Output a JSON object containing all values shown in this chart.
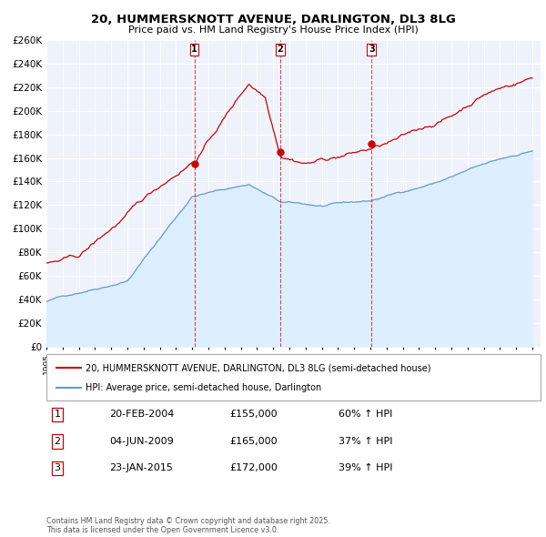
{
  "title_line1": "20, HUMMERSKNOTT AVENUE, DARLINGTON, DL3 8LG",
  "title_line2": "Price paid vs. HM Land Registry's House Price Index (HPI)",
  "legend_red": "20, HUMMERSKNOTT AVENUE, DARLINGTON, DL3 8LG (semi-detached house)",
  "legend_blue": "HPI: Average price, semi-detached house, Darlington",
  "sale_labels": [
    "1",
    "2",
    "3"
  ],
  "sale_dates_str": [
    "20-FEB-2004",
    "04-JUN-2009",
    "23-JAN-2015"
  ],
  "sale_prices": [
    155000,
    165000,
    172000
  ],
  "sale_prices_fmt": [
    "£155,000",
    "£165,000",
    "£172,000"
  ],
  "sale_hpi_pct": [
    "60% ↑ HPI",
    "37% ↑ HPI",
    "39% ↑ HPI"
  ],
  "sale_years": [
    2004.13,
    2009.42,
    2015.07
  ],
  "ylim": [
    0,
    260000
  ],
  "yticks": [
    0,
    20000,
    40000,
    60000,
    80000,
    100000,
    120000,
    140000,
    160000,
    180000,
    200000,
    220000,
    240000,
    260000
  ],
  "xlabel_years": [
    1995,
    1996,
    1997,
    1998,
    1999,
    2000,
    2001,
    2002,
    2003,
    2004,
    2005,
    2006,
    2007,
    2008,
    2009,
    2010,
    2011,
    2012,
    2013,
    2014,
    2015,
    2016,
    2017,
    2018,
    2019,
    2020,
    2021,
    2022,
    2023,
    2024,
    2025
  ],
  "red_color": "#cc0000",
  "blue_color": "#6699cc",
  "blue_fill_color": "#ddeeff",
  "vline_color": "#cc0000",
  "bg_color": "#eef2fb",
  "grid_color": "#ffffff",
  "footer": "Contains HM Land Registry data © Crown copyright and database right 2025.\nThis data is licensed under the Open Government Licence v3.0."
}
